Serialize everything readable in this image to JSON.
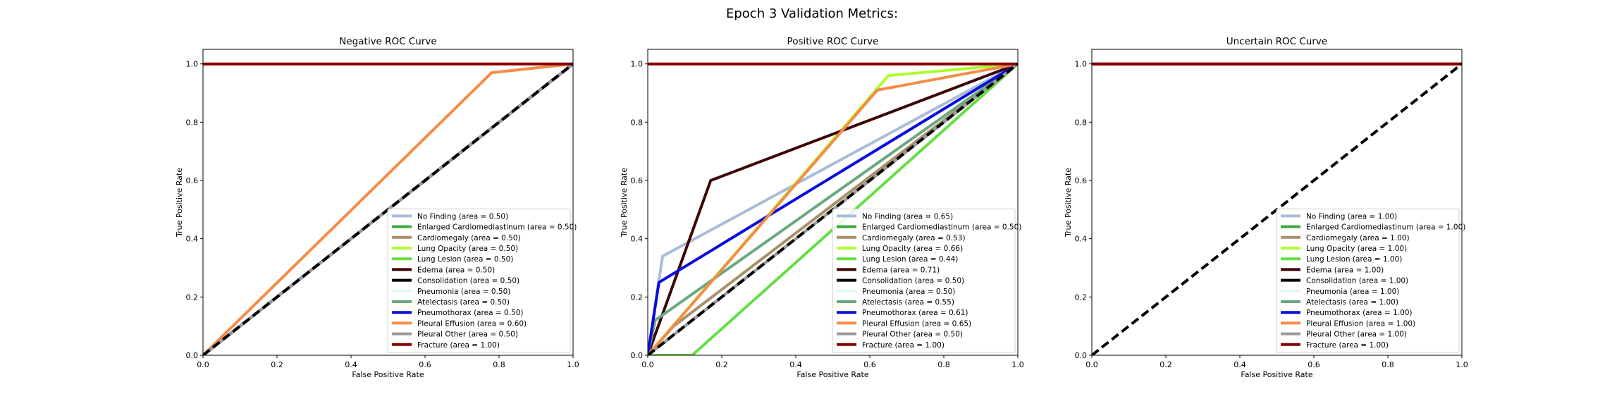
{
  "figure": {
    "suptitle": "Epoch 3 Validation Metrics:"
  },
  "chart_data": [
    {
      "type": "line",
      "title": "Negative ROC Curve",
      "xlabel": "False Positive Rate",
      "ylabel": "True Positive Rate",
      "xlim": [
        0,
        1
      ],
      "ylim": [
        0,
        1.05
      ],
      "xticks": [
        "0.0",
        "0.2",
        "0.4",
        "0.6",
        "0.8",
        "1.0"
      ],
      "yticks": [
        "0.0",
        "0.2",
        "0.4",
        "0.6",
        "0.8",
        "1.0"
      ],
      "grid": false,
      "legend": "lower-right",
      "series": [
        {
          "name": "No Finding (area = 0.50)",
          "color": "#a9bcd9",
          "x": [
            0,
            1
          ],
          "y": [
            0,
            1
          ]
        },
        {
          "name": "Enlarged Cardiomediastinum (area = 0.50)",
          "color": "#3da83d",
          "x": [
            0,
            1
          ],
          "y": [
            0,
            1
          ]
        },
        {
          "name": "Cardiomegaly (area = 0.50)",
          "color": "#a8906a",
          "x": [
            0,
            1
          ],
          "y": [
            0,
            1
          ]
        },
        {
          "name": "Lung Opacity (area = 0.50)",
          "color": "#adff2f",
          "x": [
            0,
            1
          ],
          "y": [
            0,
            1
          ]
        },
        {
          "name": "Lung Lesion (area = 0.50)",
          "color": "#66dd44",
          "x": [
            0,
            1
          ],
          "y": [
            0,
            1
          ]
        },
        {
          "name": "Edema (area = 0.50)",
          "color": "#3d0505",
          "x": [
            0,
            1
          ],
          "y": [
            0,
            1
          ]
        },
        {
          "name": "Consolidation (area = 0.50)",
          "color": "#000000",
          "x": [
            0,
            1
          ],
          "y": [
            0,
            1
          ]
        },
        {
          "name": "Pneumonia (area = 0.50)",
          "color": "#e3f8f8",
          "x": [
            0,
            1
          ],
          "y": [
            0,
            1
          ]
        },
        {
          "name": "Atelectasis (area = 0.50)",
          "color": "#6aa880",
          "x": [
            0,
            1
          ],
          "y": [
            0,
            1
          ]
        },
        {
          "name": "Pneumothorax (area = 0.50)",
          "color": "#0b0bdd",
          "x": [
            0,
            1
          ],
          "y": [
            0,
            1
          ]
        },
        {
          "name": "Pleural Effusion (area = 0.60)",
          "color": "#f58c45",
          "x": [
            0,
            0.78,
            1
          ],
          "y": [
            0,
            0.97,
            1
          ]
        },
        {
          "name": "Pleural Other (area = 0.50)",
          "color": "#9a9a9a",
          "x": [
            0,
            1
          ],
          "y": [
            0,
            1
          ]
        },
        {
          "name": "Fracture (area = 1.00)",
          "color": "#880000",
          "x": [
            0,
            1
          ],
          "y": [
            1,
            1
          ]
        }
      ]
    },
    {
      "type": "line",
      "title": "Positive ROC Curve",
      "xlabel": "False Positive Rate",
      "ylabel": "True Positive Rate",
      "xlim": [
        0,
        1
      ],
      "ylim": [
        0,
        1.05
      ],
      "xticks": [
        "0.0",
        "0.2",
        "0.4",
        "0.6",
        "0.8",
        "1.0"
      ],
      "yticks": [
        "0.0",
        "0.2",
        "0.4",
        "0.6",
        "0.8",
        "1.0"
      ],
      "grid": false,
      "legend": "lower-right",
      "series": [
        {
          "name": "No Finding (area = 0.65)",
          "color": "#a9bcd9",
          "x": [
            0,
            0.04,
            1
          ],
          "y": [
            0,
            0.34,
            1
          ]
        },
        {
          "name": "Enlarged Cardiomediastinum (area = 0.50)",
          "color": "#3da83d",
          "x": [
            0,
            1
          ],
          "y": [
            0,
            1
          ]
        },
        {
          "name": "Cardiomegaly (area = 0.53)",
          "color": "#a8906a",
          "x": [
            0,
            0.07,
            1
          ],
          "y": [
            0,
            0.1,
            1
          ]
        },
        {
          "name": "Lung Opacity (area = 0.66)",
          "color": "#adff2f",
          "x": [
            0,
            0.65,
            1
          ],
          "y": [
            0,
            0.96,
            1
          ]
        },
        {
          "name": "Lung Lesion (area = 0.44)",
          "color": "#66dd44",
          "x": [
            0,
            0.12,
            1
          ],
          "y": [
            0,
            0,
            1
          ]
        },
        {
          "name": "Edema (area = 0.71)",
          "color": "#3d0505",
          "x": [
            0,
            0.17,
            1
          ],
          "y": [
            0,
            0.6,
            1
          ]
        },
        {
          "name": "Consolidation (area = 0.50)",
          "color": "#000000",
          "x": [
            0,
            1
          ],
          "y": [
            0,
            1
          ]
        },
        {
          "name": "Pneumonia (area = 0.50)",
          "color": "#e3f8f8",
          "x": [
            0,
            1
          ],
          "y": [
            0,
            1
          ]
        },
        {
          "name": "Atelectasis (area = 0.55)",
          "color": "#6aa880",
          "x": [
            0,
            0.02,
            1
          ],
          "y": [
            0,
            0.12,
            1
          ]
        },
        {
          "name": "Pneumothorax (area = 0.61)",
          "color": "#0b0bdd",
          "x": [
            0,
            0.03,
            1
          ],
          "y": [
            0,
            0.25,
            1
          ]
        },
        {
          "name": "Pleural Effusion (area = 0.65)",
          "color": "#f58c45",
          "x": [
            0,
            0.62,
            1
          ],
          "y": [
            0,
            0.91,
            1
          ]
        },
        {
          "name": "Pleural Other (area = 0.50)",
          "color": "#9a9a9a",
          "x": [
            0,
            1
          ],
          "y": [
            0,
            1
          ]
        },
        {
          "name": "Fracture (area = 1.00)",
          "color": "#880000",
          "x": [
            0,
            1
          ],
          "y": [
            1,
            1
          ]
        }
      ]
    },
    {
      "type": "line",
      "title": "Uncertain ROC Curve",
      "xlabel": "False Positive Rate",
      "ylabel": "True Positive Rate",
      "xlim": [
        0,
        1
      ],
      "ylim": [
        0,
        1.05
      ],
      "xticks": [
        "0.0",
        "0.2",
        "0.4",
        "0.6",
        "0.8",
        "1.0"
      ],
      "yticks": [
        "0.0",
        "0.2",
        "0.4",
        "0.6",
        "0.8",
        "1.0"
      ],
      "grid": false,
      "legend": "lower-right",
      "series": [
        {
          "name": "No Finding (area = 1.00)",
          "color": "#a9bcd9",
          "x": [
            0,
            1
          ],
          "y": [
            1,
            1
          ]
        },
        {
          "name": "Enlarged Cardiomediastinum (area = 1.00)",
          "color": "#3da83d",
          "x": [
            0,
            1
          ],
          "y": [
            1,
            1
          ]
        },
        {
          "name": "Cardiomegaly (area = 1.00)",
          "color": "#a8906a",
          "x": [
            0,
            1
          ],
          "y": [
            1,
            1
          ]
        },
        {
          "name": "Lung Opacity (area = 1.00)",
          "color": "#adff2f",
          "x": [
            0,
            1
          ],
          "y": [
            1,
            1
          ]
        },
        {
          "name": "Lung Lesion (area = 1.00)",
          "color": "#66dd44",
          "x": [
            0,
            1
          ],
          "y": [
            1,
            1
          ]
        },
        {
          "name": "Edema (area = 1.00)",
          "color": "#3d0505",
          "x": [
            0,
            1
          ],
          "y": [
            1,
            1
          ]
        },
        {
          "name": "Consolidation (area = 1.00)",
          "color": "#000000",
          "x": [
            0,
            1
          ],
          "y": [
            1,
            1
          ]
        },
        {
          "name": "Pneumonia (area = 1.00)",
          "color": "#e3f8f8",
          "x": [
            0,
            1
          ],
          "y": [
            1,
            1
          ]
        },
        {
          "name": "Atelectasis (area = 1.00)",
          "color": "#6aa880",
          "x": [
            0,
            1
          ],
          "y": [
            1,
            1
          ]
        },
        {
          "name": "Pneumothorax (area = 1.00)",
          "color": "#0b0bdd",
          "x": [
            0,
            1
          ],
          "y": [
            1,
            1
          ]
        },
        {
          "name": "Pleural Effusion (area = 1.00)",
          "color": "#f58c45",
          "x": [
            0,
            1
          ],
          "y": [
            1,
            1
          ]
        },
        {
          "name": "Pleural Other (area = 1.00)",
          "color": "#9a9a9a",
          "x": [
            0,
            1
          ],
          "y": [
            1,
            1
          ]
        },
        {
          "name": "Fracture (area = 1.00)",
          "color": "#880000",
          "x": [
            0,
            1
          ],
          "y": [
            1,
            1
          ]
        }
      ],
      "reference": {
        "x": [
          0,
          1
        ],
        "y": [
          0,
          1
        ],
        "style": "dashed",
        "color": "#000000"
      }
    }
  ],
  "reference_line": {
    "x": [
      0,
      1
    ],
    "y": [
      0,
      1
    ],
    "style": "dashed",
    "color": "#000000"
  }
}
